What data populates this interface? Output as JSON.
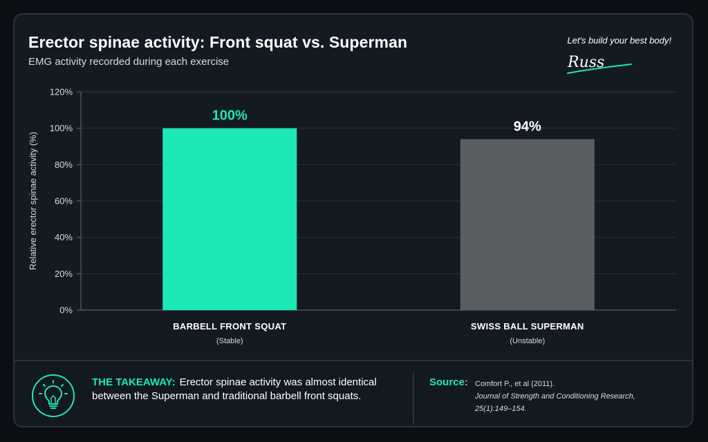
{
  "header": {
    "title": "Erector spinae activity: Front squat vs. Superman",
    "subtitle": "EMG activity recorded during each exercise"
  },
  "brand": {
    "tagline": "Let's build your best body!",
    "signature": "Russ"
  },
  "colors": {
    "accent": "#1de9b6",
    "bar_secondary": "#5a5e63",
    "background": "#141a22",
    "grid": "#2b323b"
  },
  "chart_data": {
    "type": "bar",
    "ylabel": "Relative erector spinae activity (%)",
    "ylim": [
      0,
      120
    ],
    "yticks": [
      0,
      20,
      40,
      60,
      80,
      100,
      120
    ],
    "ytick_labels": [
      "0%",
      "20%",
      "40%",
      "60%",
      "80%",
      "100%",
      "120%"
    ],
    "grid": true,
    "categories": [
      "BARBELL FRONT SQUAT",
      "SWISS BALL SUPERMAN"
    ],
    "category_sublabels": [
      "(Stable)",
      "(Unstable)"
    ],
    "values": [
      100,
      94
    ],
    "value_labels": [
      "100%",
      "94%"
    ],
    "bar_colors": [
      "#1de9b6",
      "#5a5e63"
    ],
    "value_label_colors": [
      "#1de9b6",
      "#ffffff"
    ]
  },
  "footer": {
    "icon": "lightbulb-icon",
    "takeaway_label": "THE TAKEAWAY:",
    "takeaway_text": "Erector spinae activity was almost identical between the Superman and traditional barbell front squats.",
    "source_label": "Source:",
    "source_lines": [
      "Comfort P., et al (2011).",
      "Journal of Strength and Conditioning Research,",
      "25(1):149–154."
    ]
  }
}
